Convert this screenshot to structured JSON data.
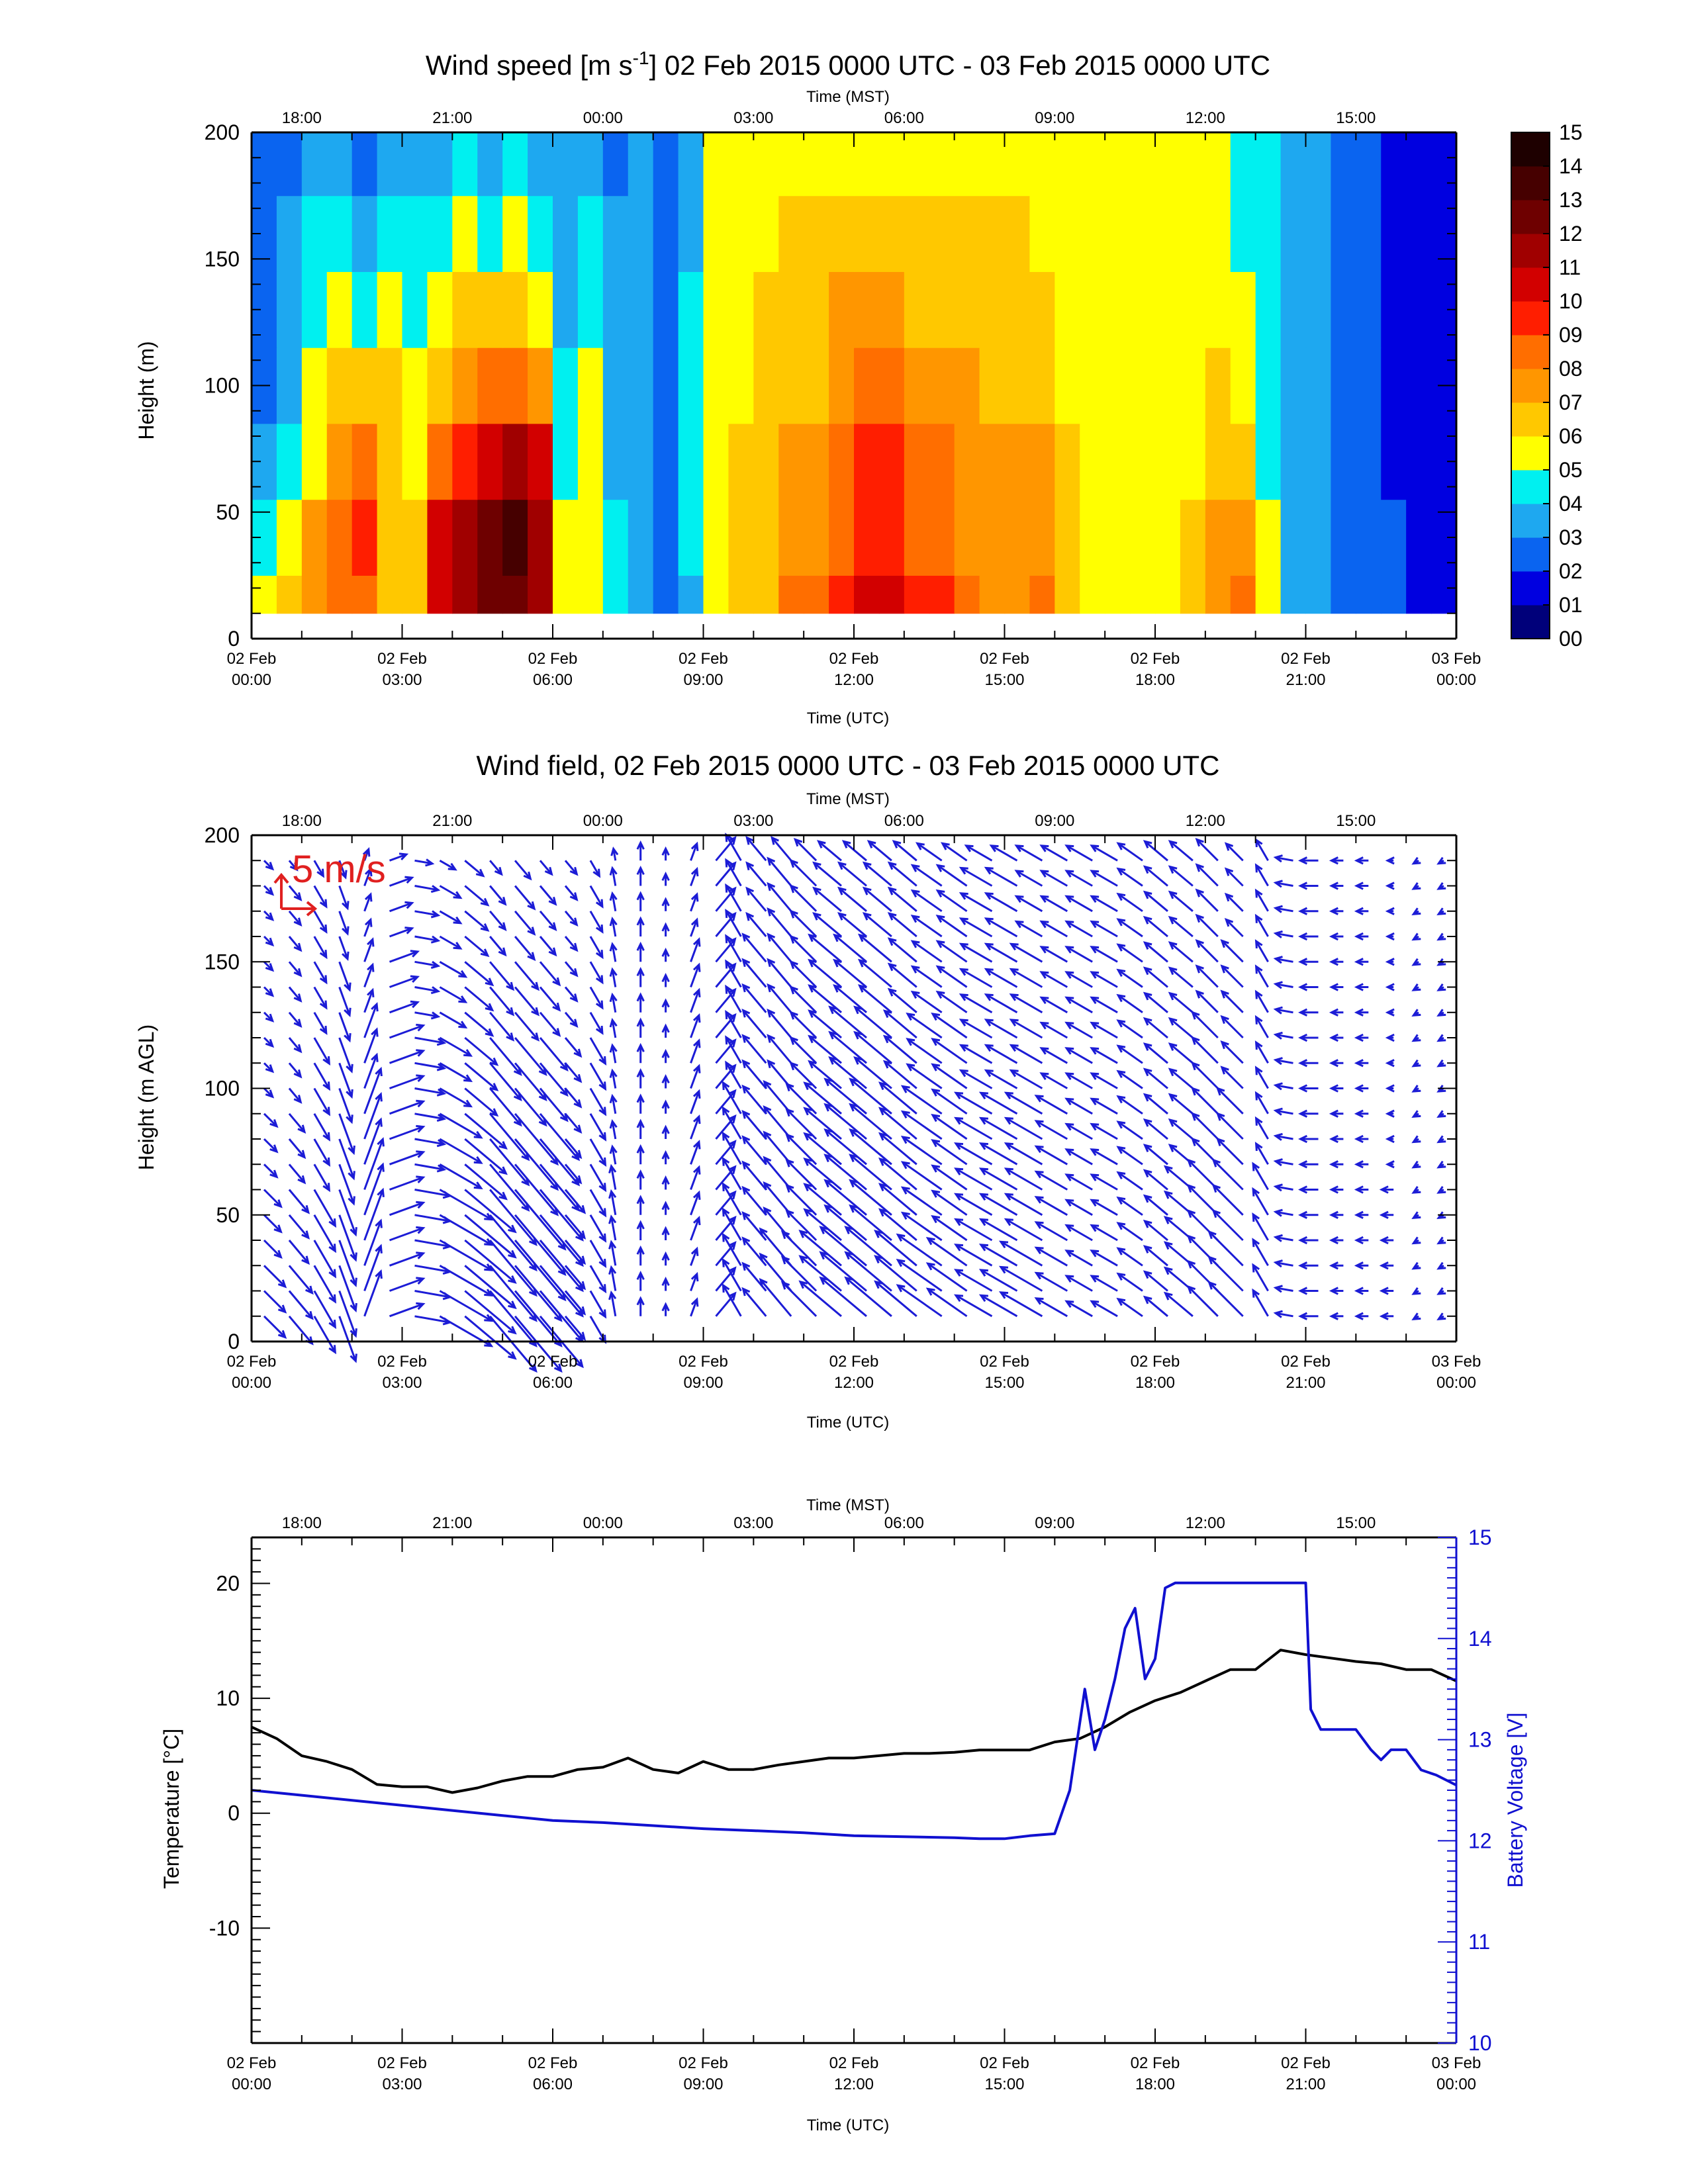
{
  "chart_data": [
    {
      "type": "heatmap",
      "title_main": "Wind speed [m s",
      "title_sup": "-1",
      "title_rest": "] 02 Feb 2015 0000 UTC - 03 Feb 2015 0000 UTC",
      "xlabel": "Time (UTC)",
      "x2label": "Time (MST)",
      "ylabel": "Height (m)",
      "x_ticks": [
        {
          "d": "02 Feb",
          "t": "00:00",
          "h": 0
        },
        {
          "d": "02 Feb",
          "t": "03:00",
          "h": 3
        },
        {
          "d": "02 Feb",
          "t": "06:00",
          "h": 6
        },
        {
          "d": "02 Feb",
          "t": "09:00",
          "h": 9
        },
        {
          "d": "02 Feb",
          "t": "12:00",
          "h": 12
        },
        {
          "d": "02 Feb",
          "t": "15:00",
          "h": 15
        },
        {
          "d": "02 Feb",
          "t": "18:00",
          "h": 18
        },
        {
          "d": "02 Feb",
          "t": "21:00",
          "h": 21
        },
        {
          "d": "03 Feb",
          "t": "00:00",
          "h": 24
        }
      ],
      "x2_ticks": [
        {
          "label": "18:00",
          "h": 1
        },
        {
          "label": "21:00",
          "h": 4
        },
        {
          "label": "00:00",
          "h": 7
        },
        {
          "label": "03:00",
          "h": 10
        },
        {
          "label": "06:00",
          "h": 13
        },
        {
          "label": "09:00",
          "h": 16
        },
        {
          "label": "12:00",
          "h": 19
        },
        {
          "label": "15:00",
          "h": 22
        }
      ],
      "y_ticks": [
        "0",
        "50",
        "100",
        "150",
        "200"
      ],
      "ylim": [
        0,
        200
      ],
      "xlim_hours": [
        0,
        24
      ],
      "colorbar_labels": [
        "00",
        "01",
        "02",
        "03",
        "04",
        "05",
        "06",
        "07",
        "08",
        "09",
        "10",
        "11",
        "12",
        "13",
        "14",
        "15"
      ],
      "colorbar_colors": [
        "#00007a",
        "#0000e0",
        "#0a64f0",
        "#1ea8f0",
        "#00f0f0",
        "#ffff00",
        "#ffc800",
        "#ff9600",
        "#ff6e00",
        "#ff1e00",
        "#d20000",
        "#a00000",
        "#6e0000",
        "#460000",
        "#1e0000"
      ],
      "hours": [
        0.25,
        0.75,
        1.25,
        1.75,
        2.25,
        2.75,
        3.25,
        3.75,
        4.25,
        4.75,
        5.25,
        5.75,
        6.25,
        6.75,
        7.25,
        7.75,
        8.25,
        8.75,
        9.25,
        9.75,
        10.25,
        10.75,
        11.25,
        11.75,
        12.25,
        12.75,
        13.25,
        13.75,
        14.25,
        14.75,
        15.25,
        15.75,
        16.25,
        16.75,
        17.25,
        17.75,
        18.25,
        18.75,
        19.25,
        19.75,
        20.25,
        20.75,
        21.25,
        21.75,
        22.25,
        22.75,
        23.25,
        23.75
      ],
      "heights": [
        10,
        40,
        70,
        100,
        130,
        160,
        190
      ],
      "speed_bands_m_s": [
        [
          5,
          6,
          7,
          8,
          8,
          6,
          6,
          10,
          11,
          12,
          12,
          11,
          5,
          5,
          4,
          3,
          2,
          3,
          5,
          6,
          6,
          8,
          8,
          9,
          10,
          10,
          9,
          9,
          8,
          7,
          7,
          8,
          6,
          5,
          5,
          5,
          5,
          6,
          7,
          8,
          5,
          3,
          3,
          2,
          2,
          2,
          1,
          1
        ],
        [
          4,
          5,
          7,
          8,
          9,
          6,
          6,
          10,
          11,
          12,
          13,
          11,
          5,
          5,
          4,
          3,
          2,
          4,
          5,
          6,
          6,
          7,
          7,
          8,
          9,
          9,
          8,
          8,
          7,
          7,
          7,
          7,
          6,
          5,
          5,
          5,
          5,
          6,
          7,
          7,
          5,
          3,
          3,
          2,
          2,
          2,
          1,
          1
        ],
        [
          3,
          4,
          5,
          7,
          8,
          6,
          5,
          8,
          9,
          10,
          11,
          10,
          4,
          5,
          3,
          3,
          2,
          4,
          5,
          6,
          6,
          7,
          7,
          8,
          9,
          9,
          8,
          8,
          7,
          7,
          7,
          7,
          6,
          5,
          5,
          5,
          5,
          5,
          6,
          6,
          4,
          3,
          3,
          2,
          2,
          1,
          1,
          1
        ],
        [
          2,
          3,
          5,
          6,
          6,
          6,
          5,
          6,
          7,
          8,
          8,
          7,
          4,
          5,
          3,
          3,
          2,
          4,
          5,
          5,
          6,
          6,
          6,
          7,
          8,
          8,
          7,
          7,
          7,
          6,
          6,
          6,
          5,
          5,
          5,
          5,
          5,
          5,
          6,
          5,
          4,
          3,
          3,
          2,
          2,
          1,
          1,
          1
        ],
        [
          2,
          3,
          4,
          5,
          4,
          5,
          4,
          5,
          6,
          6,
          6,
          5,
          3,
          4,
          3,
          3,
          2,
          4,
          5,
          5,
          6,
          6,
          6,
          7,
          7,
          7,
          6,
          6,
          6,
          6,
          6,
          6,
          5,
          5,
          5,
          5,
          5,
          5,
          5,
          5,
          4,
          3,
          3,
          2,
          2,
          1,
          1,
          1
        ],
        [
          2,
          3,
          4,
          4,
          3,
          4,
          4,
          4,
          5,
          4,
          5,
          4,
          3,
          4,
          3,
          3,
          2,
          3,
          5,
          5,
          5,
          6,
          6,
          6,
          6,
          6,
          6,
          6,
          6,
          6,
          6,
          5,
          5,
          5,
          5,
          5,
          5,
          5,
          5,
          4,
          4,
          3,
          3,
          2,
          2,
          1,
          1,
          1
        ],
        [
          2,
          2,
          3,
          3,
          2,
          3,
          3,
          3,
          4,
          3,
          4,
          3,
          3,
          3,
          2,
          3,
          2,
          3,
          5,
          5,
          5,
          5,
          5,
          5,
          5,
          5,
          5,
          5,
          5,
          5,
          5,
          5,
          5,
          5,
          5,
          5,
          5,
          5,
          5,
          4,
          4,
          3,
          3,
          2,
          2,
          1,
          1,
          1
        ]
      ]
    },
    {
      "type": "scatter",
      "title": "Wind field, 02 Feb 2015 0000 UTC - 03 Feb 2015 0000 UTC",
      "xlabel": "Time (UTC)",
      "x2label": "Time (MST)",
      "ylabel": "Height (m AGL)",
      "scale_label": "5 m/s",
      "y_ticks": [
        "0",
        "50",
        "100",
        "150",
        "200"
      ],
      "ylim": [
        0,
        200
      ],
      "barb_color": "#1c1cd6",
      "scale_color": "#e02020",
      "hours": [
        0.25,
        0.75,
        1.25,
        1.75,
        2.25,
        2.75,
        3.25,
        3.75,
        4.25,
        4.75,
        5.25,
        5.75,
        6.25,
        6.75,
        7.25,
        7.75,
        8.25,
        8.75,
        9.25,
        9.75,
        10.25,
        10.75,
        11.25,
        11.75,
        12.25,
        12.75,
        13.25,
        13.75,
        14.25,
        14.75,
        15.25,
        15.75,
        16.25,
        16.75,
        17.25,
        17.75,
        18.25,
        18.75,
        19.25,
        19.75,
        20.25,
        20.75,
        21.25,
        21.75,
        22.25,
        22.75,
        23.25,
        23.75
      ],
      "direction_from_deg": [
        315,
        320,
        330,
        340,
        200,
        250,
        280,
        300,
        310,
        320,
        320,
        320,
        320,
        330,
        170,
        180,
        180,
        200,
        220,
        150,
        140,
        140,
        135,
        130,
        130,
        130,
        130,
        125,
        125,
        120,
        120,
        120,
        120,
        120,
        120,
        125,
        130,
        130,
        135,
        135,
        150,
        100,
        90,
        90,
        90,
        90,
        60,
        60
      ]
    },
    {
      "type": "line",
      "xlabel": "Time (UTC)",
      "x2label": "Time (MST)",
      "ylabel": "Temperature [°C]",
      "y2label": "Battery Voltage [V]",
      "y_ticks": [
        "20",
        "10",
        "0",
        "-10"
      ],
      "y2_ticks": [
        "15",
        "14",
        "13",
        "12",
        "11",
        "10"
      ],
      "ylim": [
        -20,
        24
      ],
      "y2lim": [
        10,
        15
      ],
      "series": [
        {
          "name": "Temperature [°C]",
          "color": "#000000",
          "axis": "left",
          "x": [
            0,
            0.5,
            1,
            1.5,
            2,
            2.5,
            3,
            3.5,
            4,
            4.5,
            5,
            5.5,
            6,
            6.5,
            7,
            7.5,
            8,
            8.5,
            9,
            9.5,
            10,
            10.5,
            11,
            11.5,
            12,
            12.5,
            13,
            13.5,
            14,
            14.5,
            15,
            15.5,
            16,
            16.5,
            17,
            17.5,
            18,
            18.5,
            19,
            19.5,
            20,
            20.5,
            21,
            21.5,
            22,
            22.5,
            23,
            23.5,
            24
          ],
          "y": [
            7.5,
            6.5,
            5,
            4.5,
            3.8,
            2.5,
            2.3,
            2.3,
            1.8,
            2.2,
            2.8,
            3.2,
            3.2,
            3.8,
            4,
            4.8,
            3.8,
            3.5,
            4.5,
            3.8,
            3.8,
            4.2,
            4.5,
            4.8,
            4.8,
            5,
            5.2,
            5.2,
            5.3,
            5.5,
            5.5,
            5.5,
            6.2,
            6.5,
            7.5,
            8.8,
            9.8,
            10.5,
            11.5,
            12.5,
            12.5,
            14.2,
            13.8,
            13.5,
            13.2,
            13,
            12.5,
            12.5,
            11.5
          ]
        },
        {
          "name": "Battery Voltage [V]",
          "color": "#1010d0",
          "axis": "right",
          "x": [
            0,
            1,
            2,
            3,
            4,
            5,
            6,
            7,
            8,
            9,
            10,
            11,
            12,
            13,
            14,
            14.5,
            15,
            15.5,
            16,
            16.3,
            16.6,
            16.8,
            17,
            17.2,
            17.4,
            17.6,
            17.8,
            18,
            18.2,
            18.4,
            18.6,
            18.8,
            19,
            19.5,
            20,
            20.5,
            21,
            21.1,
            21.3,
            21.5,
            22,
            22.3,
            22.5,
            22.7,
            23,
            23.3,
            23.6,
            24
          ],
          "y": [
            12.5,
            12.45,
            12.4,
            12.35,
            12.3,
            12.25,
            12.2,
            12.18,
            12.15,
            12.12,
            12.1,
            12.08,
            12.05,
            12.04,
            12.03,
            12.02,
            12.02,
            12.05,
            12.07,
            12.5,
            13.5,
            12.9,
            13.2,
            13.6,
            14.1,
            14.3,
            13.6,
            13.8,
            14.5,
            14.55,
            14.55,
            14.55,
            14.55,
            14.55,
            14.55,
            14.55,
            14.55,
            13.3,
            13.1,
            13.1,
            13.1,
            12.9,
            12.8,
            12.9,
            12.9,
            12.7,
            12.65,
            12.55
          ]
        }
      ]
    }
  ]
}
